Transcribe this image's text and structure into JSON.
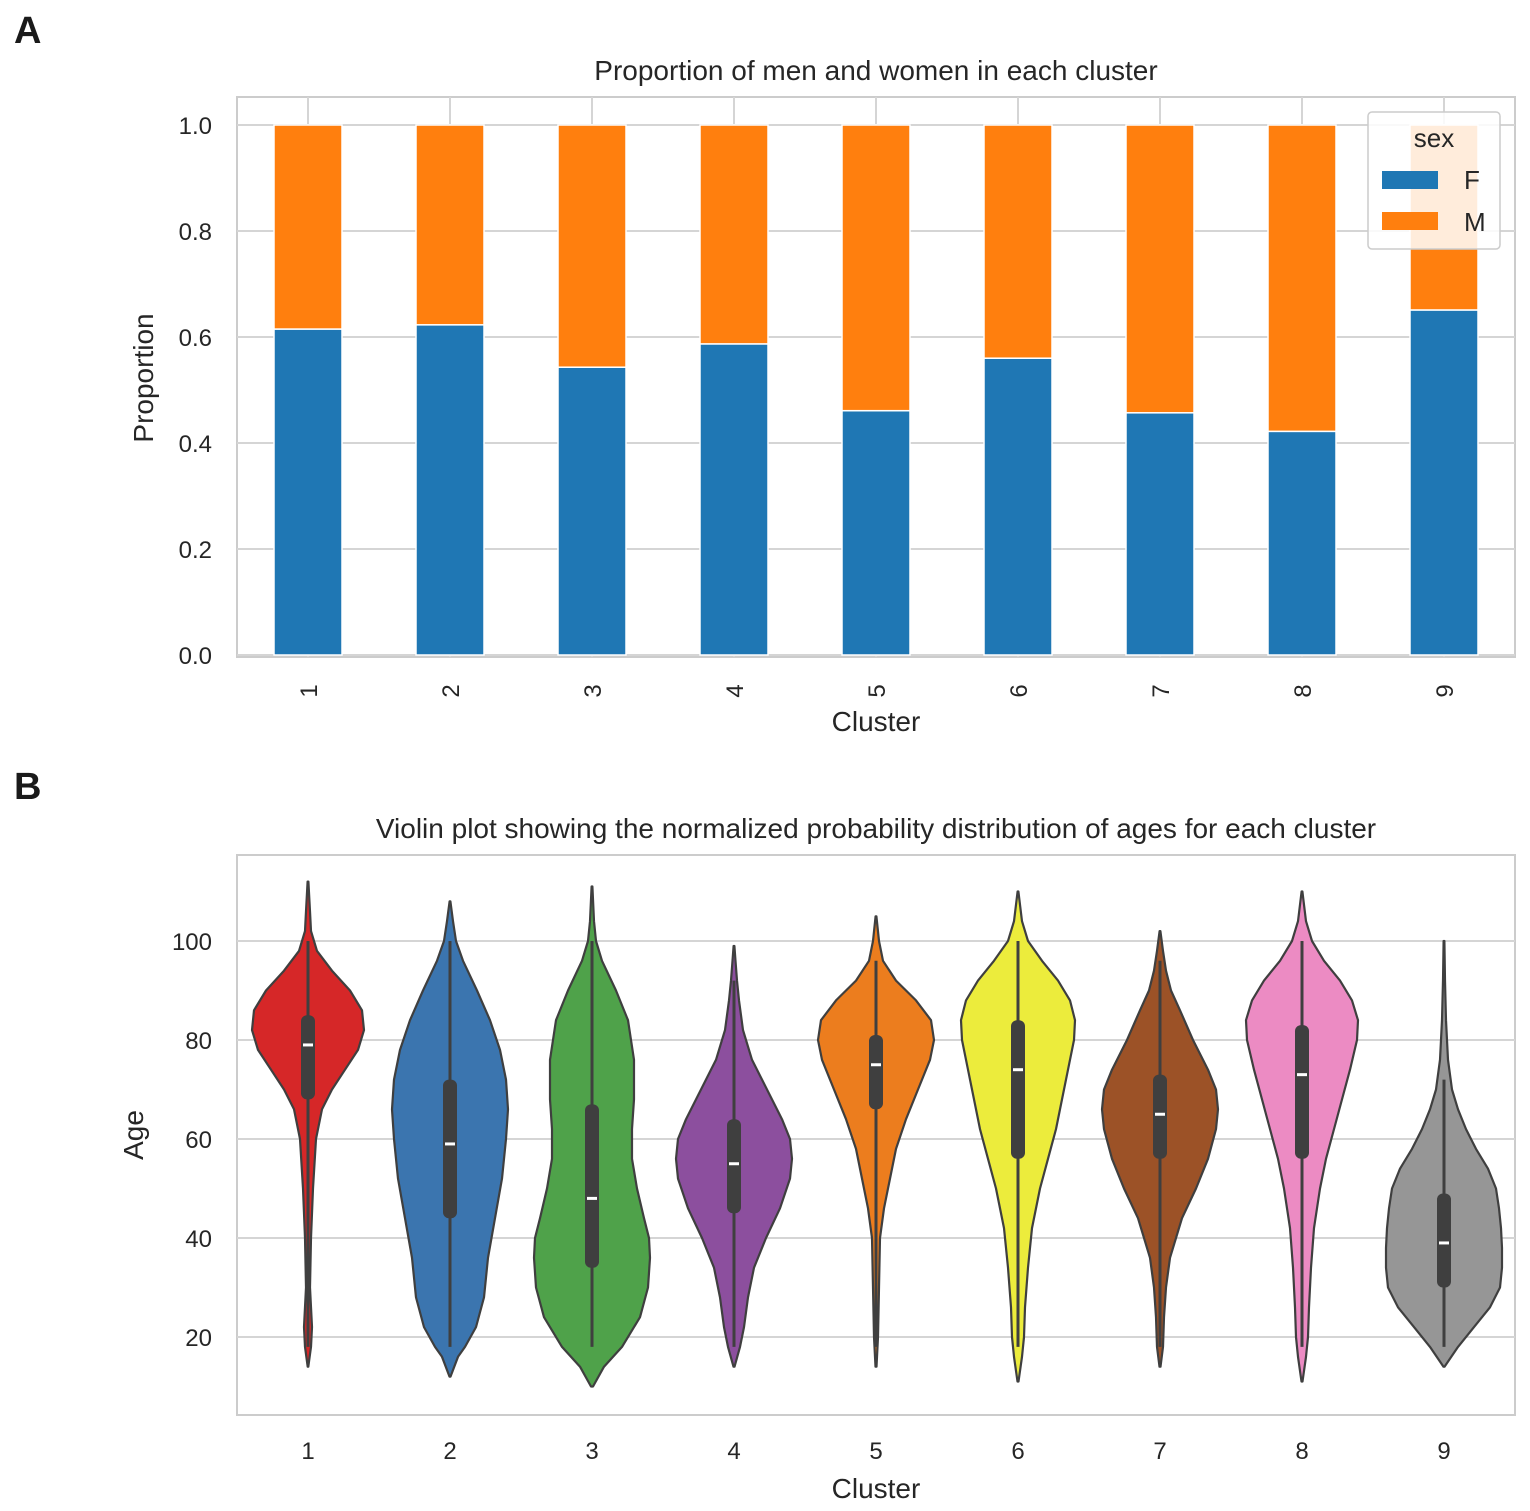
{
  "panels": {
    "a": "A",
    "b": "B"
  },
  "chart_data": [
    {
      "type": "bar",
      "stacked": true,
      "title": "Proportion of men and women in each cluster",
      "xlabel": "Cluster",
      "ylabel": "Proportion",
      "categories": [
        "1",
        "2",
        "3",
        "4",
        "5",
        "6",
        "7",
        "8",
        "9"
      ],
      "series": [
        {
          "name": "F",
          "color": "#1f77b4",
          "values": [
            0.615,
            0.623,
            0.543,
            0.587,
            0.461,
            0.56,
            0.457,
            0.422,
            0.651
          ]
        },
        {
          "name": "M",
          "color": "#ff7f0e",
          "values": [
            0.385,
            0.377,
            0.457,
            0.413,
            0.539,
            0.44,
            0.543,
            0.578,
            0.349
          ]
        }
      ],
      "yticks": [
        "0.0",
        "0.2",
        "0.4",
        "0.6",
        "0.8",
        "1.0"
      ],
      "ylim": [
        0,
        1.05
      ],
      "legend": {
        "title": "sex",
        "placement": "top-right"
      },
      "grid": true
    },
    {
      "type": "violin",
      "title": "Violin plot showing the normalized probability distribution of ages for each cluster",
      "xlabel": "Cluster",
      "ylabel": "Age",
      "categories": [
        "1",
        "2",
        "3",
        "4",
        "5",
        "6",
        "7",
        "8",
        "9"
      ],
      "colors": [
        "#d62728",
        "#3b75af",
        "#4fa24a",
        "#8c4f9e",
        "#ec7d1e",
        "#ecec3c",
        "#9c5227",
        "#ec8bc3",
        "#969696"
      ],
      "yticks": [
        "20",
        "40",
        "60",
        "80",
        "100"
      ],
      "ylim": [
        6,
        118
      ],
      "grid": true,
      "violins": [
        {
          "min": 14,
          "max": 112,
          "q1": 68,
          "median": 79,
          "q3": 85,
          "wlo": 18,
          "whi": 100,
          "profile": [
            [
              14,
              0.3
            ],
            [
              18,
              3
            ],
            [
              22,
              4
            ],
            [
              30,
              2
            ],
            [
              40,
              3
            ],
            [
              50,
              5
            ],
            [
              60,
              8
            ],
            [
              66,
              14
            ],
            [
              70,
              24
            ],
            [
              74,
              37
            ],
            [
              78,
              50
            ],
            [
              82,
              56
            ],
            [
              86,
              54
            ],
            [
              90,
              42
            ],
            [
              94,
              24
            ],
            [
              98,
              9
            ],
            [
              102,
              3
            ],
            [
              106,
              2
            ],
            [
              112,
              0.4
            ]
          ]
        },
        {
          "min": 12,
          "max": 108,
          "q1": 44,
          "median": 59,
          "q3": 72,
          "wlo": 18,
          "whi": 100,
          "profile": [
            [
              12,
              0.5
            ],
            [
              16,
              8
            ],
            [
              18,
              15
            ],
            [
              22,
              26
            ],
            [
              28,
              34
            ],
            [
              36,
              38
            ],
            [
              44,
              45
            ],
            [
              52,
              52
            ],
            [
              60,
              56
            ],
            [
              66,
              58
            ],
            [
              72,
              56
            ],
            [
              78,
              50
            ],
            [
              84,
              40
            ],
            [
              90,
              27
            ],
            [
              96,
              13
            ],
            [
              100,
              6
            ],
            [
              104,
              3
            ],
            [
              108,
              0.4
            ]
          ]
        },
        {
          "min": 10,
          "max": 111,
          "q1": 34,
          "median": 48,
          "q3": 67,
          "wlo": 18,
          "whi": 100,
          "profile": [
            [
              10,
              1
            ],
            [
              14,
              12
            ],
            [
              18,
              30
            ],
            [
              24,
              48
            ],
            [
              30,
              56
            ],
            [
              36,
              58
            ],
            [
              40,
              57
            ],
            [
              44,
              52
            ],
            [
              50,
              45
            ],
            [
              56,
              40
            ],
            [
              62,
              40
            ],
            [
              68,
              42
            ],
            [
              76,
              42
            ],
            [
              84,
              36
            ],
            [
              90,
              24
            ],
            [
              96,
              10
            ],
            [
              100,
              4
            ],
            [
              104,
              2
            ],
            [
              111,
              0.4
            ]
          ]
        },
        {
          "min": 14,
          "max": 99,
          "q1": 45,
          "median": 55,
          "q3": 64,
          "wlo": 18,
          "whi": 92,
          "profile": [
            [
              14,
              0.5
            ],
            [
              18,
              6
            ],
            [
              22,
              10
            ],
            [
              28,
              14
            ],
            [
              34,
              20
            ],
            [
              40,
              32
            ],
            [
              46,
              46
            ],
            [
              52,
              56
            ],
            [
              56,
              58
            ],
            [
              60,
              56
            ],
            [
              64,
              48
            ],
            [
              70,
              33
            ],
            [
              76,
              18
            ],
            [
              82,
              9
            ],
            [
              88,
              5
            ],
            [
              92,
              3
            ],
            [
              96,
              1.5
            ],
            [
              99,
              0.4
            ]
          ]
        },
        {
          "min": 14,
          "max": 105,
          "q1": 66,
          "median": 75,
          "q3": 81,
          "wlo": 18,
          "whi": 96,
          "profile": [
            [
              14,
              0.5
            ],
            [
              20,
              2
            ],
            [
              30,
              3
            ],
            [
              40,
              4
            ],
            [
              46,
              8
            ],
            [
              52,
              14
            ],
            [
              58,
              20
            ],
            [
              64,
              30
            ],
            [
              70,
              42
            ],
            [
              76,
              54
            ],
            [
              80,
              58
            ],
            [
              84,
              55
            ],
            [
              88,
              40
            ],
            [
              92,
              20
            ],
            [
              96,
              7
            ],
            [
              100,
              3
            ],
            [
              105,
              0.4
            ]
          ]
        },
        {
          "min": 11,
          "max": 110,
          "q1": 56,
          "median": 74,
          "q3": 84,
          "wlo": 18,
          "whi": 100,
          "profile": [
            [
              11,
              0.5
            ],
            [
              16,
              4
            ],
            [
              20,
              6
            ],
            [
              26,
              7
            ],
            [
              34,
              10
            ],
            [
              42,
              14
            ],
            [
              50,
              22
            ],
            [
              56,
              30
            ],
            [
              62,
              38
            ],
            [
              68,
              44
            ],
            [
              74,
              50
            ],
            [
              80,
              56
            ],
            [
              84,
              57
            ],
            [
              88,
              52
            ],
            [
              92,
              40
            ],
            [
              96,
              24
            ],
            [
              100,
              10
            ],
            [
              104,
              4
            ],
            [
              110,
              0.4
            ]
          ]
        },
        {
          "min": 14,
          "max": 102,
          "q1": 56,
          "median": 65,
          "q3": 73,
          "wlo": 18,
          "whi": 96,
          "profile": [
            [
              14,
              0.5
            ],
            [
              18,
              3
            ],
            [
              24,
              4
            ],
            [
              30,
              6
            ],
            [
              36,
              10
            ],
            [
              44,
              22
            ],
            [
              50,
              36
            ],
            [
              56,
              48
            ],
            [
              62,
              56
            ],
            [
              66,
              58
            ],
            [
              70,
              56
            ],
            [
              74,
              48
            ],
            [
              80,
              33
            ],
            [
              86,
              20
            ],
            [
              90,
              11
            ],
            [
              94,
              6
            ],
            [
              98,
              3
            ],
            [
              102,
              0.4
            ]
          ]
        },
        {
          "min": 11,
          "max": 110,
          "q1": 56,
          "median": 73,
          "q3": 83,
          "wlo": 18,
          "whi": 100,
          "profile": [
            [
              11,
              0.5
            ],
            [
              16,
              4
            ],
            [
              20,
              6
            ],
            [
              26,
              7
            ],
            [
              34,
              9
            ],
            [
              42,
              12
            ],
            [
              50,
              18
            ],
            [
              56,
              24
            ],
            [
              62,
              32
            ],
            [
              68,
              40
            ],
            [
              74,
              48
            ],
            [
              80,
              55
            ],
            [
              84,
              56
            ],
            [
              88,
              50
            ],
            [
              92,
              38
            ],
            [
              96,
              22
            ],
            [
              100,
              10
            ],
            [
              104,
              4
            ],
            [
              110,
              0.4
            ]
          ]
        },
        {
          "min": 14,
          "max": 100,
          "q1": 30,
          "median": 39,
          "q3": 49,
          "wlo": 18,
          "whi": 72,
          "profile": [
            [
              14,
              0.5
            ],
            [
              18,
              14
            ],
            [
              22,
              30
            ],
            [
              26,
              46
            ],
            [
              30,
              56
            ],
            [
              34,
              58
            ],
            [
              38,
              58
            ],
            [
              42,
              57
            ],
            [
              46,
              55
            ],
            [
              50,
              52
            ],
            [
              54,
              44
            ],
            [
              58,
              32
            ],
            [
              62,
              22
            ],
            [
              66,
              14
            ],
            [
              70,
              8
            ],
            [
              76,
              4
            ],
            [
              84,
              2
            ],
            [
              92,
              1
            ],
            [
              100,
              0.4
            ]
          ]
        }
      ]
    }
  ]
}
